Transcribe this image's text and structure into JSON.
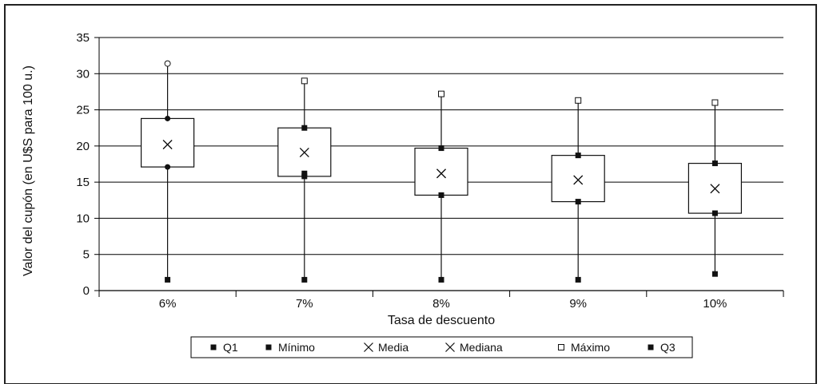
{
  "chart_data": {
    "type": "box",
    "title": "",
    "xlabel": "Tasa de descuento",
    "ylabel": "Valor del cupón (en U$S para 100 u.)",
    "ylim": [
      0,
      35
    ],
    "yticks": [
      0,
      5,
      10,
      15,
      20,
      25,
      30,
      35
    ],
    "grid": true,
    "legend_position": "bottom",
    "categories": [
      "6%",
      "7%",
      "8%",
      "9%",
      "10%"
    ],
    "series": [
      {
        "name": "Q1",
        "marker": "filled-square",
        "values": [
          17.1,
          15.8,
          13.2,
          12.3,
          10.7
        ]
      },
      {
        "name": "Mínimo",
        "marker": "filled-square",
        "values": [
          1.5,
          1.5,
          1.5,
          1.5,
          2.3
        ]
      },
      {
        "name": "Media",
        "marker": "x",
        "values": [
          20.2,
          19.1,
          16.2,
          15.3,
          14.1
        ]
      },
      {
        "name": "Mediana",
        "marker": "x",
        "values": [
          20.2,
          19.1,
          16.2,
          15.3,
          14.1
        ]
      },
      {
        "name": "Máximo",
        "marker": "open-square",
        "values": [
          31.4,
          29.0,
          27.2,
          26.3,
          26.0
        ]
      },
      {
        "name": "Q3",
        "marker": "filled-square",
        "values": [
          23.8,
          22.5,
          19.7,
          18.7,
          17.6
        ]
      }
    ],
    "point_markers": {
      "6%": {
        "Q1": "circle",
        "Q3": "circle",
        "Máximo": "open-circle"
      }
    },
    "extra_points": [
      {
        "category": "7%",
        "value": 16.2
      }
    ]
  }
}
